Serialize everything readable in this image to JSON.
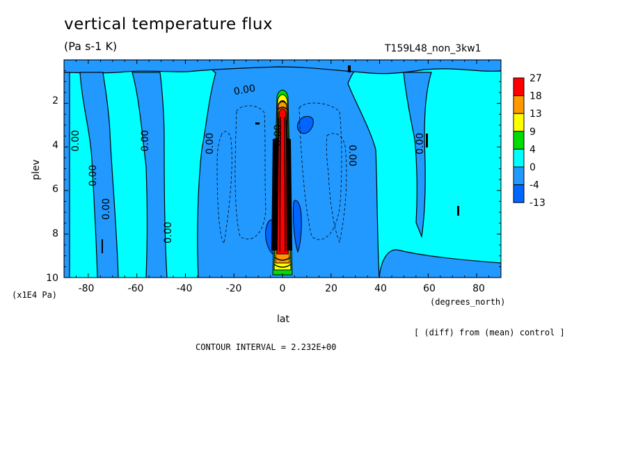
{
  "chart_data": {
    "type": "heatmap",
    "title": "vertical temperature flux",
    "units": "(Pa s-1 K)",
    "run_id": "T159L48_non_3kw1",
    "xlabel": "lat",
    "x_units": "(degrees_north)",
    "ylabel": "plev",
    "y_units": "(x1E4 Pa)",
    "xlim": [
      -90,
      90
    ],
    "ylim": [
      10,
      0
    ],
    "x_ticks": [
      "-80",
      "-60",
      "-40",
      "-20",
      "0",
      "20",
      "40",
      "60",
      "80"
    ],
    "y_ticks": [
      "2",
      "4",
      "6",
      "8",
      "10"
    ],
    "colorbar": {
      "labels": [
        "27",
        "18",
        "13",
        "9",
        "4",
        "0",
        "-4",
        "-13"
      ],
      "colors": [
        "#ff0000",
        "#ff9900",
        "#ffff00",
        "#00dd00",
        "#00ffff",
        "#2299ff",
        "#0066ff"
      ]
    },
    "contour_labels": [
      "0.00",
      "0.00",
      "0.00",
      "0.00",
      "0.00",
      "0.00",
      "0.00",
      "0.00",
      "0.00",
      "0.00"
    ],
    "contour_interval": "CONTOUR INTERVAL = 2.232E+00",
    "comparison_note": "[ (diff) from (mean) control ]",
    "grid": false
  }
}
